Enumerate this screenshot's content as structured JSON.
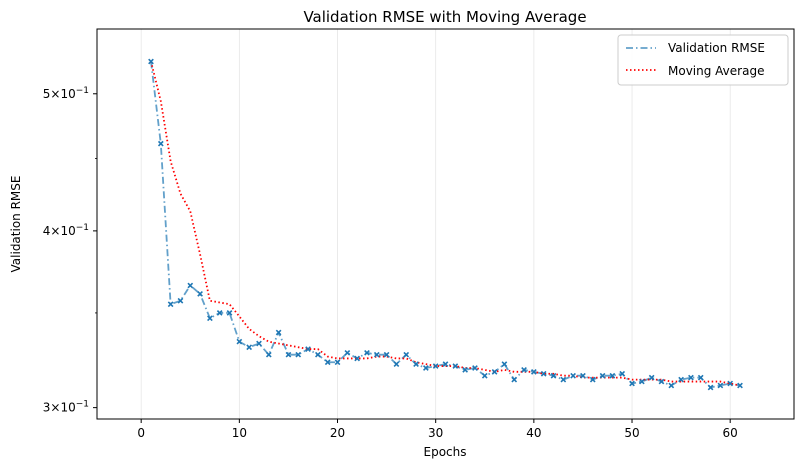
{
  "chart_data": {
    "type": "line",
    "title": "Validation RMSE with Moving Average",
    "xlabel": "Epochs",
    "ylabel": "Validation RMSE",
    "xlim": [
      -4.5,
      66.5
    ],
    "ylim": [
      0.2945,
      0.5556
    ],
    "y_scale": "log",
    "grid": "x-only",
    "legend_position": "top-right",
    "x_ticks": [
      0,
      10,
      20,
      30,
      40,
      50,
      60
    ],
    "x_tick_labels": [
      "0",
      "10",
      "20",
      "30",
      "40",
      "50",
      "60"
    ],
    "y_ticks": [
      {
        "value": 0.3,
        "base": "3",
        "mult": "×10",
        "exp": "−1"
      },
      {
        "value": 0.4,
        "base": "4",
        "mult": "×10",
        "exp": "−1"
      },
      {
        "value": 0.5,
        "base": "5",
        "mult": "×10",
        "exp": "−1"
      }
    ],
    "x": [
      1,
      2,
      3,
      4,
      5,
      6,
      7,
      8,
      9,
      10,
      11,
      12,
      13,
      14,
      15,
      16,
      17,
      18,
      19,
      20,
      21,
      22,
      23,
      24,
      25,
      26,
      27,
      28,
      29,
      30,
      31,
      32,
      33,
      34,
      35,
      36,
      37,
      38,
      39,
      40,
      41,
      42,
      43,
      44,
      45,
      46,
      47,
      48,
      49,
      50,
      51,
      52,
      53,
      54,
      55,
      56,
      57,
      58,
      59,
      60,
      61
    ],
    "series": [
      {
        "name": "Validation RMSE",
        "color": "#1f77b4",
        "style": "dash-dot",
        "marker": "x",
        "values": [
          0.527,
          0.461,
          0.355,
          0.357,
          0.366,
          0.361,
          0.347,
          0.35,
          0.35,
          0.334,
          0.331,
          0.333,
          0.327,
          0.339,
          0.327,
          0.327,
          0.33,
          0.327,
          0.323,
          0.323,
          0.328,
          0.325,
          0.328,
          0.327,
          0.327,
          0.322,
          0.327,
          0.322,
          0.32,
          0.321,
          0.322,
          0.321,
          0.319,
          0.32,
          0.316,
          0.318,
          0.322,
          0.314,
          0.319,
          0.318,
          0.317,
          0.316,
          0.314,
          0.316,
          0.316,
          0.314,
          0.316,
          0.316,
          0.317,
          0.312,
          0.313,
          0.315,
          0.313,
          0.311,
          0.314,
          0.315,
          0.315,
          0.31,
          0.311,
          0.312,
          0.311
        ]
      },
      {
        "name": "Moving Average",
        "color": "#ff0000",
        "style": "dotted",
        "values": [
          0.527,
          0.494,
          0.448,
          0.425,
          0.413,
          0.385,
          0.357,
          0.356,
          0.355,
          0.348,
          0.341,
          0.337,
          0.334,
          0.333,
          0.332,
          0.331,
          0.33,
          0.33,
          0.326,
          0.325,
          0.325,
          0.325,
          0.325,
          0.326,
          0.326,
          0.325,
          0.325,
          0.323,
          0.322,
          0.321,
          0.321,
          0.321,
          0.32,
          0.32,
          0.319,
          0.318,
          0.319,
          0.318,
          0.318,
          0.318,
          0.317,
          0.317,
          0.316,
          0.316,
          0.315,
          0.315,
          0.315,
          0.315,
          0.315,
          0.314,
          0.314,
          0.314,
          0.314,
          0.313,
          0.313,
          0.313,
          0.313,
          0.313,
          0.313,
          0.312,
          0.311
        ]
      }
    ]
  }
}
